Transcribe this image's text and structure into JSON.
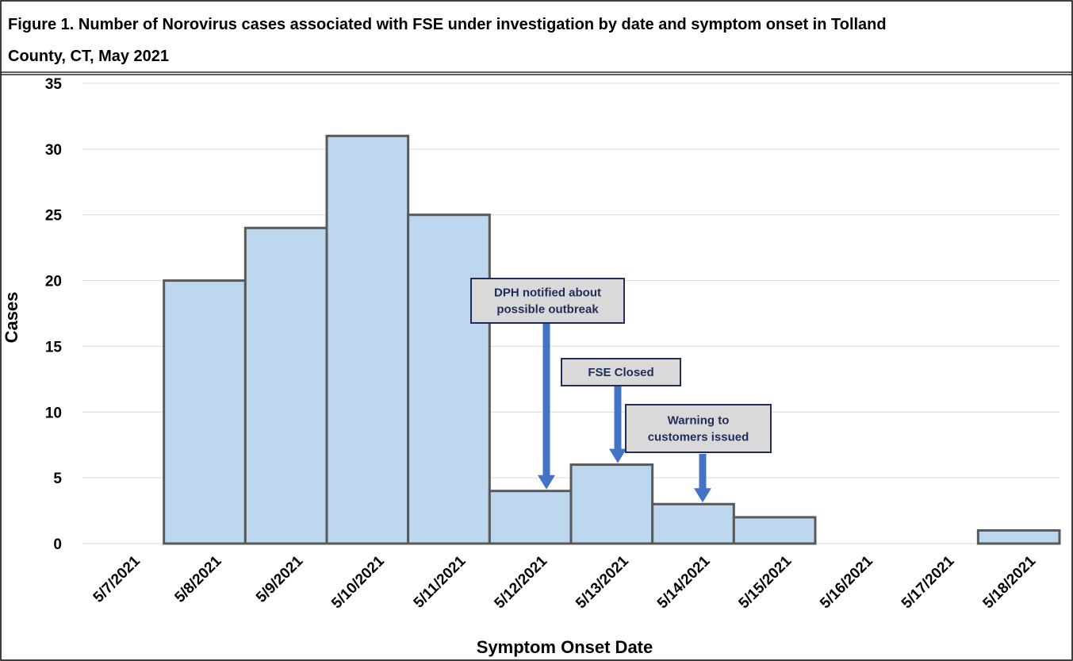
{
  "title_line1": "Figure 1. Number of Norovirus cases associated with FSE under investigation  by date and symptom onset in Tolland",
  "title_line2": "County, CT, May 2021",
  "chart_data": {
    "type": "bar",
    "title": "Figure 1. Number of Norovirus cases associated with FSE under investigation  by date and symptom onset in Tolland County, CT, May 2021",
    "xlabel": "Symptom Onset Date",
    "ylabel": "Cases",
    "categories": [
      "5/7/2021",
      "5/8/2021",
      "5/9/2021",
      "5/10/2021",
      "5/11/2021",
      "5/12/2021",
      "5/13/2021",
      "5/14/2021",
      "5/15/2021",
      "5/16/2021",
      "5/17/2021",
      "5/18/2021"
    ],
    "values": [
      0,
      20,
      24,
      31,
      25,
      4,
      6,
      3,
      2,
      0,
      0,
      1
    ],
    "ylim": [
      0,
      35
    ],
    "yticks": [
      0,
      5,
      10,
      15,
      20,
      25,
      30,
      35
    ],
    "grid": true,
    "bar_color": "#bdd7ee",
    "bar_edge_color": "#595959",
    "annotations": [
      {
        "lines": [
          "DPH notified about",
          "possible outbreak"
        ],
        "date": "5/12/2021",
        "points_to_value": 4
      },
      {
        "lines": [
          "FSE Closed"
        ],
        "date": "5/13/2021",
        "points_to_value": 6
      },
      {
        "lines": [
          "Warning to",
          "customers issued"
        ],
        "date": "5/14/2021",
        "points_to_value": 3
      }
    ],
    "arrow_color": "#4472c4"
  }
}
